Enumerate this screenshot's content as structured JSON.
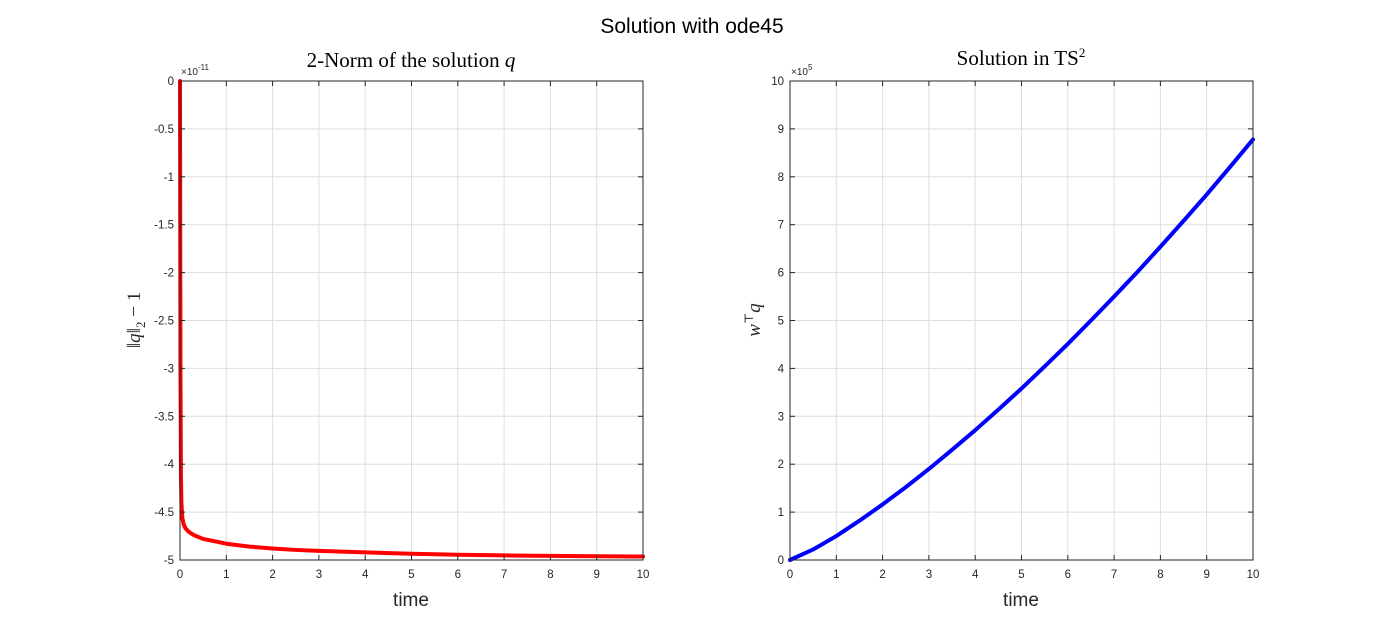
{
  "figure": {
    "title": "Solution with ode45"
  },
  "chart_data": [
    {
      "type": "line",
      "title": "2-Norm of the solution q",
      "title_parts": {
        "text": "2-Norm of the solution ",
        "math": "q"
      },
      "xlabel": "time",
      "ylabel": "‖q‖₂ − 1",
      "ylabel_parts": {
        "norm_open": "‖q‖",
        "sub": "2",
        "rest": " − 1"
      },
      "exponent_label": {
        "base": "×10",
        "power": "-11"
      },
      "xlim": [
        0,
        10
      ],
      "ylim": [
        -5,
        0
      ],
      "grid": true,
      "xticks": [
        "0",
        "1",
        "2",
        "3",
        "4",
        "5",
        "6",
        "7",
        "8",
        "9",
        "10"
      ],
      "yticks": [
        "0",
        "-0.5",
        "-1",
        "-1.5",
        "-2",
        "-2.5",
        "-3",
        "-3.5",
        "-4",
        "-4.5",
        "-5"
      ],
      "ytick_values": [
        0,
        -0.5,
        -1,
        -1.5,
        -2,
        -2.5,
        -3,
        -3.5,
        -4,
        -4.5,
        -5
      ],
      "series": [
        {
          "color": "#ff0000",
          "x": [
            0,
            0.01,
            0.02,
            0.03,
            0.05,
            0.08,
            0.12,
            0.2,
            0.3,
            0.5,
            0.7,
            1,
            1.5,
            2,
            2.5,
            3,
            4,
            5,
            6,
            7,
            8,
            9,
            10
          ],
          "y": [
            0,
            -3.0,
            -4.1,
            -4.4,
            -4.56,
            -4.63,
            -4.67,
            -4.71,
            -4.74,
            -4.78,
            -4.8,
            -4.83,
            -4.86,
            -4.88,
            -4.895,
            -4.905,
            -4.92,
            -4.935,
            -4.945,
            -4.952,
            -4.957,
            -4.961,
            -4.964
          ]
        }
      ]
    },
    {
      "type": "line",
      "title": "Solution in TS2",
      "title_parts": {
        "text": "Solution in TS",
        "sup": "2"
      },
      "xlabel": "time",
      "ylabel": "w⊤q",
      "ylabel_parts": {
        "w": "w",
        "sup": "⊤",
        "q": "q"
      },
      "exponent_label": {
        "base": "×10",
        "power": "5"
      },
      "xlim": [
        0,
        10
      ],
      "ylim": [
        0,
        10
      ],
      "grid": true,
      "xticks": [
        "0",
        "1",
        "2",
        "3",
        "4",
        "5",
        "6",
        "7",
        "8",
        "9",
        "10"
      ],
      "yticks": [
        "0",
        "1",
        "2",
        "3",
        "4",
        "5",
        "6",
        "7",
        "8",
        "9",
        "10"
      ],
      "ytick_values": [
        0,
        1,
        2,
        3,
        4,
        5,
        6,
        7,
        8,
        9,
        10
      ],
      "series": [
        {
          "color": "#0000ff",
          "x": [
            0,
            0.5,
            1,
            1.5,
            2,
            2.5,
            3,
            3.5,
            4,
            4.5,
            5,
            5.5,
            6,
            6.5,
            7,
            7.5,
            8,
            8.5,
            9,
            9.5,
            10
          ],
          "y": [
            0,
            0.22,
            0.5,
            0.82,
            1.16,
            1.52,
            1.9,
            2.3,
            2.71,
            3.14,
            3.58,
            4.04,
            4.51,
            5.0,
            5.5,
            6.01,
            6.54,
            7.08,
            7.63,
            8.2,
            8.78
          ]
        }
      ]
    }
  ]
}
